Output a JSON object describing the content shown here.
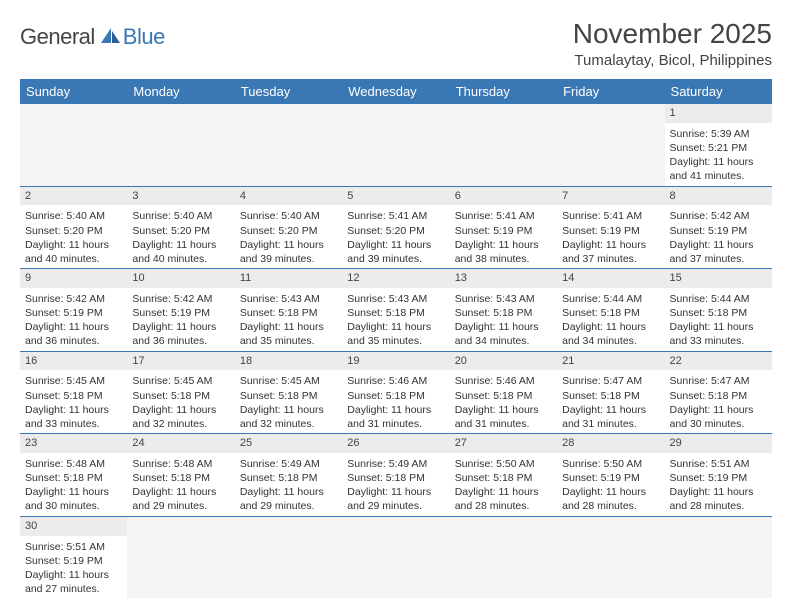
{
  "brand": {
    "part1": "General",
    "part2": "Blue"
  },
  "title": "November 2025",
  "location": "Tumalaytay, Bicol, Philippines",
  "colors": {
    "accent": "#3a78b5",
    "background": "#ffffff",
    "header_text": "#ffffff",
    "daynum_bg": "#ececec",
    "empty_bg": "#f4f4f4",
    "text": "#333333"
  },
  "day_headers": [
    "Sunday",
    "Monday",
    "Tuesday",
    "Wednesday",
    "Thursday",
    "Friday",
    "Saturday"
  ],
  "weeks": [
    [
      {
        "num": "",
        "sunrise": "",
        "sunset": "",
        "daylight": ""
      },
      {
        "num": "",
        "sunrise": "",
        "sunset": "",
        "daylight": ""
      },
      {
        "num": "",
        "sunrise": "",
        "sunset": "",
        "daylight": ""
      },
      {
        "num": "",
        "sunrise": "",
        "sunset": "",
        "daylight": ""
      },
      {
        "num": "",
        "sunrise": "",
        "sunset": "",
        "daylight": ""
      },
      {
        "num": "",
        "sunrise": "",
        "sunset": "",
        "daylight": ""
      },
      {
        "num": "1",
        "sunrise": "Sunrise: 5:39 AM",
        "sunset": "Sunset: 5:21 PM",
        "daylight": "Daylight: 11 hours and 41 minutes."
      }
    ],
    [
      {
        "num": "2",
        "sunrise": "Sunrise: 5:40 AM",
        "sunset": "Sunset: 5:20 PM",
        "daylight": "Daylight: 11 hours and 40 minutes."
      },
      {
        "num": "3",
        "sunrise": "Sunrise: 5:40 AM",
        "sunset": "Sunset: 5:20 PM",
        "daylight": "Daylight: 11 hours and 40 minutes."
      },
      {
        "num": "4",
        "sunrise": "Sunrise: 5:40 AM",
        "sunset": "Sunset: 5:20 PM",
        "daylight": "Daylight: 11 hours and 39 minutes."
      },
      {
        "num": "5",
        "sunrise": "Sunrise: 5:41 AM",
        "sunset": "Sunset: 5:20 PM",
        "daylight": "Daylight: 11 hours and 39 minutes."
      },
      {
        "num": "6",
        "sunrise": "Sunrise: 5:41 AM",
        "sunset": "Sunset: 5:19 PM",
        "daylight": "Daylight: 11 hours and 38 minutes."
      },
      {
        "num": "7",
        "sunrise": "Sunrise: 5:41 AM",
        "sunset": "Sunset: 5:19 PM",
        "daylight": "Daylight: 11 hours and 37 minutes."
      },
      {
        "num": "8",
        "sunrise": "Sunrise: 5:42 AM",
        "sunset": "Sunset: 5:19 PM",
        "daylight": "Daylight: 11 hours and 37 minutes."
      }
    ],
    [
      {
        "num": "9",
        "sunrise": "Sunrise: 5:42 AM",
        "sunset": "Sunset: 5:19 PM",
        "daylight": "Daylight: 11 hours and 36 minutes."
      },
      {
        "num": "10",
        "sunrise": "Sunrise: 5:42 AM",
        "sunset": "Sunset: 5:19 PM",
        "daylight": "Daylight: 11 hours and 36 minutes."
      },
      {
        "num": "11",
        "sunrise": "Sunrise: 5:43 AM",
        "sunset": "Sunset: 5:18 PM",
        "daylight": "Daylight: 11 hours and 35 minutes."
      },
      {
        "num": "12",
        "sunrise": "Sunrise: 5:43 AM",
        "sunset": "Sunset: 5:18 PM",
        "daylight": "Daylight: 11 hours and 35 minutes."
      },
      {
        "num": "13",
        "sunrise": "Sunrise: 5:43 AM",
        "sunset": "Sunset: 5:18 PM",
        "daylight": "Daylight: 11 hours and 34 minutes."
      },
      {
        "num": "14",
        "sunrise": "Sunrise: 5:44 AM",
        "sunset": "Sunset: 5:18 PM",
        "daylight": "Daylight: 11 hours and 34 minutes."
      },
      {
        "num": "15",
        "sunrise": "Sunrise: 5:44 AM",
        "sunset": "Sunset: 5:18 PM",
        "daylight": "Daylight: 11 hours and 33 minutes."
      }
    ],
    [
      {
        "num": "16",
        "sunrise": "Sunrise: 5:45 AM",
        "sunset": "Sunset: 5:18 PM",
        "daylight": "Daylight: 11 hours and 33 minutes."
      },
      {
        "num": "17",
        "sunrise": "Sunrise: 5:45 AM",
        "sunset": "Sunset: 5:18 PM",
        "daylight": "Daylight: 11 hours and 32 minutes."
      },
      {
        "num": "18",
        "sunrise": "Sunrise: 5:45 AM",
        "sunset": "Sunset: 5:18 PM",
        "daylight": "Daylight: 11 hours and 32 minutes."
      },
      {
        "num": "19",
        "sunrise": "Sunrise: 5:46 AM",
        "sunset": "Sunset: 5:18 PM",
        "daylight": "Daylight: 11 hours and 31 minutes."
      },
      {
        "num": "20",
        "sunrise": "Sunrise: 5:46 AM",
        "sunset": "Sunset: 5:18 PM",
        "daylight": "Daylight: 11 hours and 31 minutes."
      },
      {
        "num": "21",
        "sunrise": "Sunrise: 5:47 AM",
        "sunset": "Sunset: 5:18 PM",
        "daylight": "Daylight: 11 hours and 31 minutes."
      },
      {
        "num": "22",
        "sunrise": "Sunrise: 5:47 AM",
        "sunset": "Sunset: 5:18 PM",
        "daylight": "Daylight: 11 hours and 30 minutes."
      }
    ],
    [
      {
        "num": "23",
        "sunrise": "Sunrise: 5:48 AM",
        "sunset": "Sunset: 5:18 PM",
        "daylight": "Daylight: 11 hours and 30 minutes."
      },
      {
        "num": "24",
        "sunrise": "Sunrise: 5:48 AM",
        "sunset": "Sunset: 5:18 PM",
        "daylight": "Daylight: 11 hours and 29 minutes."
      },
      {
        "num": "25",
        "sunrise": "Sunrise: 5:49 AM",
        "sunset": "Sunset: 5:18 PM",
        "daylight": "Daylight: 11 hours and 29 minutes."
      },
      {
        "num": "26",
        "sunrise": "Sunrise: 5:49 AM",
        "sunset": "Sunset: 5:18 PM",
        "daylight": "Daylight: 11 hours and 29 minutes."
      },
      {
        "num": "27",
        "sunrise": "Sunrise: 5:50 AM",
        "sunset": "Sunset: 5:18 PM",
        "daylight": "Daylight: 11 hours and 28 minutes."
      },
      {
        "num": "28",
        "sunrise": "Sunrise: 5:50 AM",
        "sunset": "Sunset: 5:19 PM",
        "daylight": "Daylight: 11 hours and 28 minutes."
      },
      {
        "num": "29",
        "sunrise": "Sunrise: 5:51 AM",
        "sunset": "Sunset: 5:19 PM",
        "daylight": "Daylight: 11 hours and 28 minutes."
      }
    ],
    [
      {
        "num": "30",
        "sunrise": "Sunrise: 5:51 AM",
        "sunset": "Sunset: 5:19 PM",
        "daylight": "Daylight: 11 hours and 27 minutes."
      },
      {
        "num": "",
        "sunrise": "",
        "sunset": "",
        "daylight": ""
      },
      {
        "num": "",
        "sunrise": "",
        "sunset": "",
        "daylight": ""
      },
      {
        "num": "",
        "sunrise": "",
        "sunset": "",
        "daylight": ""
      },
      {
        "num": "",
        "sunrise": "",
        "sunset": "",
        "daylight": ""
      },
      {
        "num": "",
        "sunrise": "",
        "sunset": "",
        "daylight": ""
      },
      {
        "num": "",
        "sunrise": "",
        "sunset": "",
        "daylight": ""
      }
    ]
  ]
}
